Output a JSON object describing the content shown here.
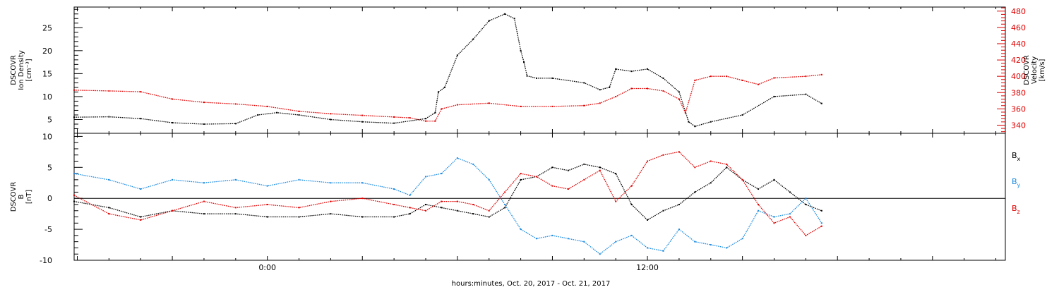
{
  "colors": {
    "black": "#000000",
    "red": "#e00000",
    "blue": "#1a8ae0",
    "frame": "#000000"
  },
  "footer": {
    "xlabel": "hours:minutes, Oct. 20, 2017 - Oct. 21, 2017"
  },
  "chart_data": [
    {
      "type": "line",
      "panel": "top",
      "x_unit": "hours since 2017-10-20 00:00",
      "xlim": [
        -6.1,
        23.3
      ],
      "x_tick_labels": [
        {
          "x": 0,
          "label": "0:00"
        },
        {
          "x": 12,
          "label": "12:00"
        }
      ],
      "left_axis": {
        "label_lines": [
          "DSCOVR",
          "Ion Density",
          "[cm⁻³]"
        ],
        "ylim": [
          2,
          29.5
        ],
        "ticks": [
          5,
          10,
          15,
          20,
          25
        ],
        "color": "#000000"
      },
      "right_axis": {
        "label_lines": [
          "DSCOVR",
          "Velocity",
          "[km/s]"
        ],
        "ylim": [
          330,
          485
        ],
        "ticks": [
          340,
          360,
          380,
          400,
          420,
          440,
          460,
          480
        ],
        "color": "#e00000"
      },
      "series": [
        {
          "axis": "left",
          "color": "#000000",
          "x": [
            -6.1,
            -5.0,
            -4.0,
            -3.0,
            -2.0,
            -1.0,
            -0.3,
            0.3,
            1.0,
            2.0,
            3.0,
            4.0,
            5.0,
            5.3,
            5.4,
            5.6,
            6.0,
            6.5,
            7.0,
            7.5,
            7.8,
            8.0,
            8.1,
            8.2,
            8.5,
            9.0,
            10.0,
            10.5,
            10.8,
            11.0,
            11.5,
            12.0,
            12.5,
            13.0,
            13.3,
            13.5,
            14.0,
            15.0,
            16.0,
            17.0,
            17.5
          ],
          "y": [
            5.5,
            5.6,
            5.2,
            4.3,
            4.0,
            4.1,
            6.0,
            6.5,
            6.0,
            5.0,
            4.5,
            4.2,
            5.2,
            6.5,
            11.0,
            12.0,
            19.0,
            22.5,
            26.5,
            28.0,
            27.0,
            20.0,
            17.5,
            14.5,
            14.0,
            14.0,
            13.0,
            11.5,
            12.0,
            16.0,
            15.5,
            16.0,
            14.0,
            11.0,
            4.5,
            3.5,
            4.5,
            6.0,
            10.0,
            10.5,
            8.5
          ]
        },
        {
          "axis": "right",
          "color": "#e00000",
          "x": [
            -6.1,
            -5.0,
            -4.0,
            -3.0,
            -2.0,
            -1.0,
            0.0,
            1.0,
            2.0,
            3.0,
            4.0,
            4.5,
            5.0,
            5.3,
            5.5,
            6.0,
            7.0,
            8.0,
            9.0,
            10.0,
            10.5,
            11.0,
            11.5,
            12.0,
            12.5,
            13.0,
            13.2,
            13.5,
            14.0,
            14.5,
            15.0,
            15.5,
            16.0,
            17.0,
            17.5
          ],
          "y": [
            383,
            382,
            381,
            372,
            368,
            366,
            363,
            357,
            354,
            352,
            350,
            349,
            345,
            345,
            360,
            365,
            367,
            363,
            363,
            364,
            367,
            375,
            385,
            385,
            382,
            372,
            355,
            395,
            400,
            400,
            395,
            390,
            398,
            400,
            402
          ]
        }
      ]
    },
    {
      "type": "line",
      "panel": "bottom",
      "x_unit": "hours since 2017-10-20 00:00",
      "xlim": [
        -6.1,
        23.3
      ],
      "x_tick_labels": [
        {
          "x": 0,
          "label": "0:00"
        },
        {
          "x": 12,
          "label": "12:00"
        }
      ],
      "left_axis": {
        "label_lines": [
          "DSCOVR",
          "B",
          "[nT]"
        ],
        "ylim": [
          -10,
          10.5
        ],
        "ticks": [
          -10,
          -5,
          0,
          5,
          10
        ],
        "color": "#000000"
      },
      "zero_line": true,
      "legend": [
        {
          "text": "B",
          "sub": "x",
          "color": "#000000"
        },
        {
          "text": "B",
          "sub": "y",
          "color": "#1a8ae0"
        },
        {
          "text": "B",
          "sub": "z",
          "color": "#e00000"
        }
      ],
      "series": [
        {
          "name": "Bx",
          "color": "#000000",
          "x": [
            -6.1,
            -5.0,
            -4.0,
            -3.0,
            -2.0,
            -1.0,
            0.0,
            1.0,
            2.0,
            3.0,
            4.0,
            4.5,
            5.0,
            5.5,
            6.0,
            6.5,
            7.0,
            7.5,
            8.0,
            8.5,
            9.0,
            9.5,
            10.0,
            10.5,
            11.0,
            11.5,
            12.0,
            12.5,
            13.0,
            13.5,
            14.0,
            14.5,
            15.0,
            15.5,
            16.0,
            16.5,
            17.0,
            17.5
          ],
          "y": [
            -0.5,
            -1.5,
            -3.0,
            -2.0,
            -2.5,
            -2.5,
            -3.0,
            -3.0,
            -2.5,
            -3.0,
            -3.0,
            -2.5,
            -1.0,
            -1.5,
            -2.0,
            -2.5,
            -3.0,
            -1.5,
            3.0,
            3.5,
            5.0,
            4.5,
            5.5,
            5.0,
            4.0,
            -1.0,
            -3.5,
            -2.0,
            -1.0,
            1.0,
            2.5,
            5.0,
            3.0,
            1.5,
            3.0,
            1.0,
            -1.0,
            -2.0
          ]
        },
        {
          "name": "By",
          "color": "#1a8ae0",
          "x": [
            -6.1,
            -5.0,
            -4.0,
            -3.0,
            -2.0,
            -1.0,
            0.0,
            1.0,
            2.0,
            3.0,
            4.0,
            4.5,
            5.0,
            5.5,
            6.0,
            6.5,
            7.0,
            7.5,
            8.0,
            8.5,
            9.0,
            9.5,
            10.0,
            10.5,
            11.0,
            11.5,
            12.0,
            12.5,
            13.0,
            13.5,
            14.0,
            14.5,
            15.0,
            15.5,
            16.0,
            16.5,
            17.0,
            17.5
          ],
          "y": [
            4.0,
            3.0,
            1.5,
            3.0,
            2.5,
            3.0,
            2.0,
            3.0,
            2.5,
            2.5,
            1.5,
            0.5,
            3.5,
            4.0,
            6.5,
            5.5,
            3.0,
            -1.0,
            -5.0,
            -6.5,
            -6.0,
            -6.5,
            -7.0,
            -9.0,
            -7.0,
            -6.0,
            -8.0,
            -8.5,
            -5.0,
            -7.0,
            -7.5,
            -8.0,
            -6.5,
            -2.0,
            -3.0,
            -2.5,
            0.0,
            -4.0
          ]
        },
        {
          "name": "Bz",
          "color": "#e00000",
          "x": [
            -6.1,
            -5.0,
            -4.0,
            -3.0,
            -2.0,
            -1.0,
            0.0,
            1.0,
            2.0,
            3.0,
            4.0,
            4.5,
            5.0,
            5.5,
            6.0,
            6.5,
            7.0,
            7.5,
            8.0,
            8.5,
            9.0,
            9.5,
            10.0,
            10.5,
            11.0,
            11.5,
            12.0,
            12.5,
            13.0,
            13.5,
            14.0,
            14.5,
            15.0,
            15.5,
            16.0,
            16.5,
            17.0,
            17.5
          ],
          "y": [
            0.5,
            -2.5,
            -3.5,
            -2.0,
            -0.5,
            -1.5,
            -1.0,
            -1.5,
            -0.5,
            0.0,
            -1.0,
            -1.5,
            -2.0,
            -0.5,
            -0.5,
            -1.0,
            -2.0,
            1.0,
            4.0,
            3.5,
            2.0,
            1.5,
            3.0,
            4.5,
            -0.5,
            2.0,
            6.0,
            7.0,
            7.5,
            5.0,
            6.0,
            5.5,
            3.0,
            -1.0,
            -4.0,
            -3.0,
            -6.0,
            -4.5
          ]
        }
      ]
    }
  ]
}
